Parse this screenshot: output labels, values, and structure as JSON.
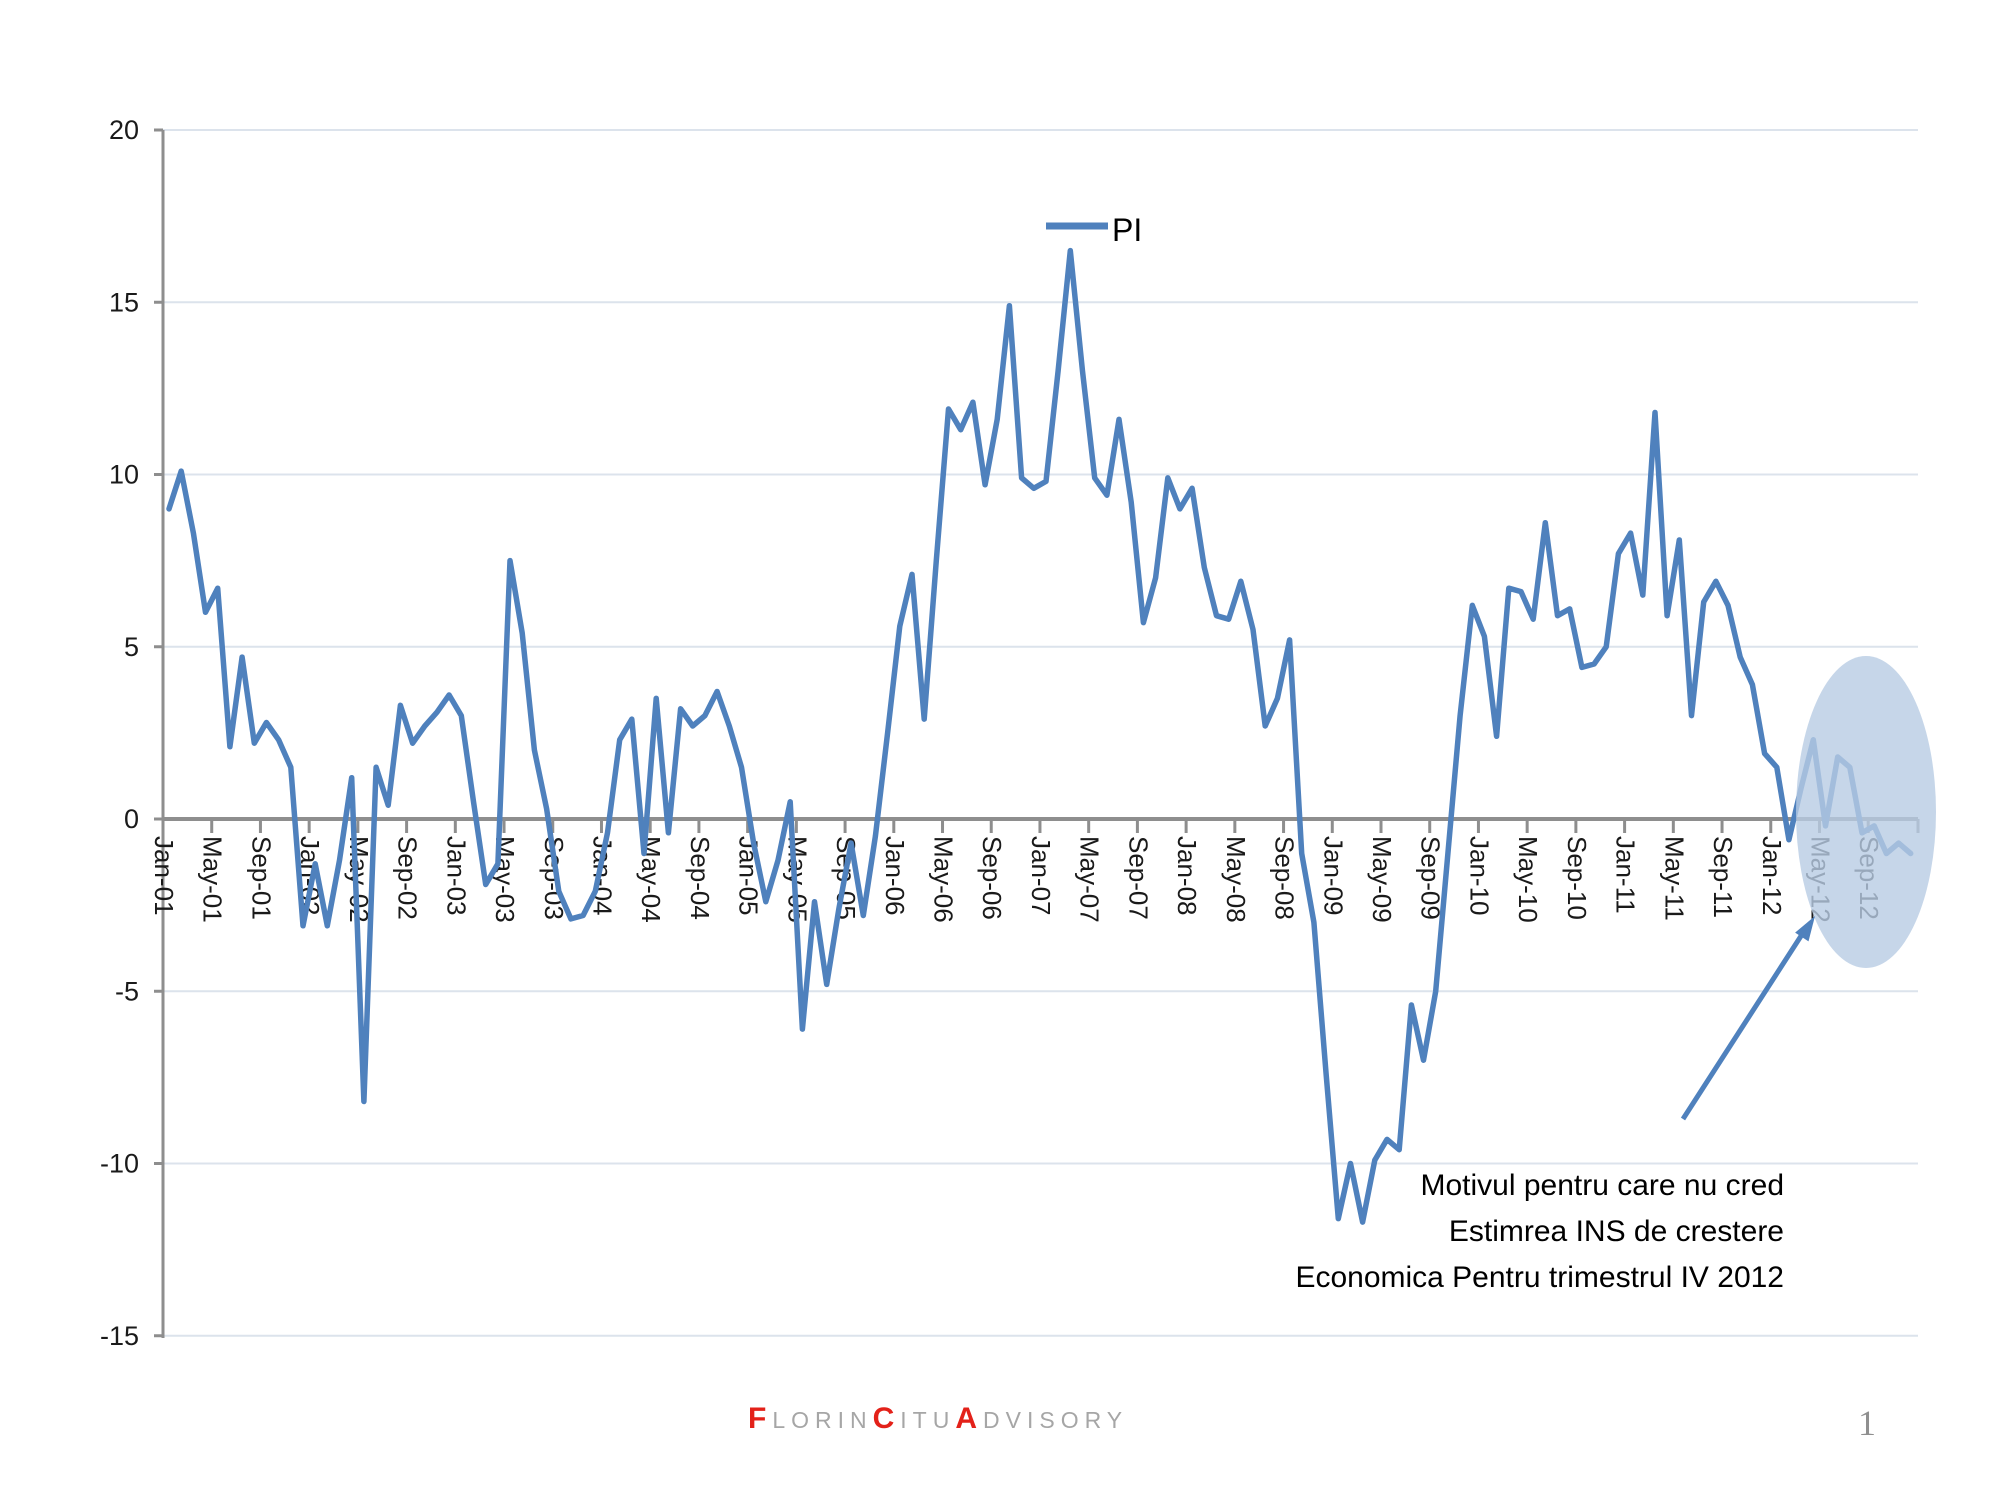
{
  "annotation": {
    "lines": [
      "Motivul pentru care nu cred",
      "Estimrea INS de crestere",
      "Economica Pentru trimestrul IV 2012"
    ]
  },
  "footer": {
    "brand_segments": [
      {
        "text": "F",
        "red": true
      },
      {
        "text": "LORIN",
        "red": false
      },
      {
        "text": "C",
        "red": true
      },
      {
        "text": "ITU",
        "red": false
      },
      {
        "text": "A",
        "red": true
      },
      {
        "text": "DVISORY",
        "red": false
      }
    ],
    "brand_red": "#e32119",
    "brand_gray": "#a6a6a6"
  },
  "page": {
    "page_number": "1"
  },
  "chart_data": {
    "type": "line",
    "title": "",
    "xlabel": "",
    "ylabel": "",
    "legend": {
      "label": "PI",
      "position": "top-center"
    },
    "ylim": [
      -15,
      20
    ],
    "grid": "horizontal",
    "y_ticks": [
      20,
      15,
      10,
      5,
      0,
      -5,
      -10,
      -15
    ],
    "y_tick_labels": [
      "20",
      "15",
      "10",
      "5",
      "0",
      "-5",
      "-10",
      "-15"
    ],
    "x_tick_labels": [
      "Jan-01",
      "May-01",
      "Sep-01",
      "Jan-02",
      "May-02",
      "Sep-02",
      "Jan-03",
      "May-03",
      "Sep-03",
      "Jan-04",
      "May-04",
      "Sep-04",
      "Jan-05",
      "May-05",
      "Sep-05",
      "Jan-06",
      "May-06",
      "Sep-06",
      "Jan-07",
      "May-07",
      "Sep-07",
      "Jan-08",
      "May-08",
      "Sep-08",
      "Jan-09",
      "May-09",
      "Sep-09",
      "Jan-10",
      "May-10",
      "Sep-10",
      "Jan-11",
      "May-11",
      "Sep-11",
      "Jan-12",
      "May-12",
      "Sep-12"
    ],
    "x_monthly": {
      "start": "Jan-2001",
      "end": "Dec-2012",
      "frequency": "monthly",
      "points": 144
    },
    "series": [
      {
        "name": "PI",
        "color": "#4F81BD",
        "values": [
          9.0,
          10.1,
          8.3,
          6.0,
          6.7,
          2.1,
          4.7,
          2.2,
          2.8,
          2.3,
          1.5,
          -3.1,
          -1.3,
          -3.1,
          -1.2,
          1.2,
          -8.2,
          1.5,
          0.4,
          3.3,
          2.2,
          2.7,
          3.1,
          3.6,
          3.0,
          0.5,
          -1.9,
          -1.3,
          7.5,
          5.4,
          2.0,
          0.3,
          -2.1,
          -2.9,
          -2.8,
          -2.1,
          -0.4,
          2.3,
          2.9,
          -1.0,
          3.5,
          -0.4,
          3.2,
          2.7,
          3.0,
          3.7,
          2.7,
          1.5,
          -0.7,
          -2.4,
          -1.2,
          0.5,
          -6.1,
          -2.4,
          -4.8,
          -2.6,
          -0.7,
          -2.8,
          -0.5,
          2.5,
          5.6,
          7.1,
          2.9,
          7.5,
          11.9,
          11.3,
          12.1,
          9.7,
          11.6,
          14.9,
          9.9,
          9.6,
          9.8,
          13.0,
          16.5,
          13.0,
          9.9,
          9.4,
          11.6,
          9.2,
          5.7,
          7.0,
          9.9,
          9.0,
          9.6,
          7.3,
          5.9,
          5.8,
          6.9,
          5.5,
          2.7,
          3.5,
          5.2,
          -1.0,
          -3.0,
          -7.4,
          -11.6,
          -10.0,
          -11.7,
          -9.9,
          -9.3,
          -9.6,
          -5.4,
          -7.0,
          -5.0,
          -1.0,
          3.0,
          6.2,
          5.3,
          2.4,
          6.7,
          6.6,
          5.8,
          8.6,
          5.9,
          6.1,
          4.4,
          4.5,
          5.0,
          7.7,
          8.3,
          6.5,
          11.8,
          5.9,
          8.1,
          3.0,
          6.3,
          6.9,
          6.2,
          4.7,
          3.9,
          1.9,
          1.5,
          -0.6,
          0.9,
          2.3,
          -0.2,
          1.8,
          1.5,
          -0.4,
          -0.2,
          -1.0,
          -0.7,
          -1.0
        ]
      }
    ],
    "colors": {
      "axis": "#8e8e8e",
      "gridline": "#dce3ec",
      "tick_label": "#1a1a1a",
      "highlight_ellipse_fill": "#b8cce4",
      "arrow": "#4F81BD"
    },
    "highlight": {
      "description": "semi-transparent ellipse over the May-12 to Dec-12 tail of the series, with an arrow pointing to it from the annotation text"
    }
  }
}
